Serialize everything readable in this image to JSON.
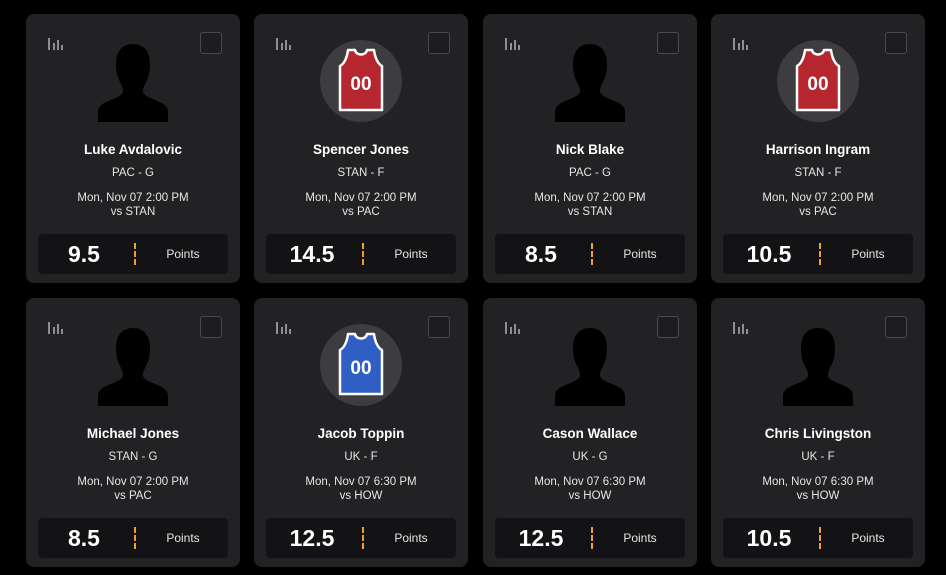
{
  "cards": [
    {
      "name": "Luke Avdalovic",
      "team": "PAC - G",
      "game_time": "Mon, Nov 07 2:00 PM",
      "opponent": "vs STAN",
      "line": "9.5",
      "stat": "Points",
      "avatar": "silhouette",
      "jersey_number": "",
      "jersey_color": ""
    },
    {
      "name": "Spencer Jones",
      "team": "STAN - F",
      "game_time": "Mon, Nov 07 2:00 PM",
      "opponent": "vs PAC",
      "line": "14.5",
      "stat": "Points",
      "avatar": "jersey",
      "jersey_number": "00",
      "jersey_color": "#b5262f"
    },
    {
      "name": "Nick Blake",
      "team": "PAC - G",
      "game_time": "Mon, Nov 07 2:00 PM",
      "opponent": "vs STAN",
      "line": "8.5",
      "stat": "Points",
      "avatar": "silhouette",
      "jersey_number": "",
      "jersey_color": ""
    },
    {
      "name": "Harrison Ingram",
      "team": "STAN - F",
      "game_time": "Mon, Nov 07 2:00 PM",
      "opponent": "vs PAC",
      "line": "10.5",
      "stat": "Points",
      "avatar": "jersey",
      "jersey_number": "00",
      "jersey_color": "#b5262f"
    },
    {
      "name": "Michael Jones",
      "team": "STAN - G",
      "game_time": "Mon, Nov 07 2:00 PM",
      "opponent": "vs PAC",
      "line": "8.5",
      "stat": "Points",
      "avatar": "silhouette",
      "jersey_number": "",
      "jersey_color": ""
    },
    {
      "name": "Jacob Toppin",
      "team": "UK - F",
      "game_time": "Mon, Nov 07 6:30 PM",
      "opponent": "vs HOW",
      "line": "12.5",
      "stat": "Points",
      "avatar": "jersey",
      "jersey_number": "00",
      "jersey_color": "#2f5fc4"
    },
    {
      "name": "Cason Wallace",
      "team": "UK - G",
      "game_time": "Mon, Nov 07 6:30 PM",
      "opponent": "vs HOW",
      "line": "12.5",
      "stat": "Points",
      "avatar": "silhouette",
      "jersey_number": "",
      "jersey_color": ""
    },
    {
      "name": "Chris Livingston",
      "team": "UK - F",
      "game_time": "Mon, Nov 07 6:30 PM",
      "opponent": "vs HOW",
      "line": "10.5",
      "stat": "Points",
      "avatar": "silhouette",
      "jersey_number": "",
      "jersey_color": ""
    }
  ],
  "icons": {
    "stats": "bar-chart-icon",
    "select": "checkbox"
  },
  "colors": {
    "card_bg": "#222224",
    "page_bg": "#000000",
    "line_box_bg": "#131315",
    "divider_accent": "#f0a030",
    "avatar_circle": "#3d3d40"
  }
}
